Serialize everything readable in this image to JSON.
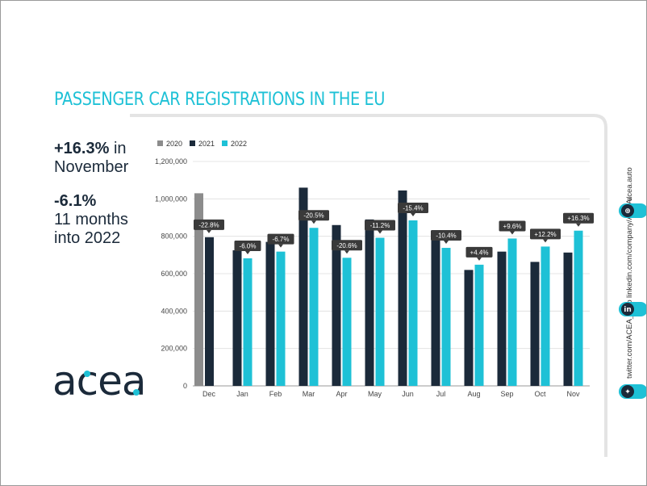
{
  "title": "PASSENGER CAR REGISTRATIONS IN THE EU",
  "stats": {
    "stat1_value": "+16.3%",
    "stat1_line1_rest": " in",
    "stat1_line2": "November",
    "stat2_value": "-6.1%",
    "stat2_line2": "11 months",
    "stat2_line3": "into 2022"
  },
  "logo_text": "acea",
  "social": {
    "handle": "acea.auto",
    "linkedin": "linkedin.com/company/ACEA/",
    "twitter": "twitter.com/ACEA_auto"
  },
  "icons": [
    "globe-icon",
    "linkedin-icon",
    "twitter-icon"
  ],
  "colors": {
    "accent": "#1ec1d6",
    "series_2020": "#8c8c8c",
    "series_2021": "#1b2a3a",
    "series_2022": "#1ec1d6",
    "callout": "#3a3a3a"
  },
  "chart_data": {
    "type": "bar",
    "categories": [
      "Dec",
      "Jan",
      "Feb",
      "Mar",
      "Apr",
      "May",
      "Jun",
      "Jul",
      "Aug",
      "Sep",
      "Oct",
      "Nov"
    ],
    "series": [
      {
        "name": "2020",
        "values": [
          1030000,
          null,
          null,
          null,
          null,
          null,
          null,
          null,
          null,
          null,
          null,
          null
        ]
      },
      {
        "name": "2021",
        "values": [
          795000,
          725000,
          770000,
          1060000,
          860000,
          890000,
          1045000,
          820000,
          620000,
          718000,
          663000,
          713000
        ]
      },
      {
        "name": "2022",
        "values": [
          null,
          682000,
          718000,
          845000,
          685000,
          792000,
          885000,
          738000,
          648000,
          788000,
          745000,
          830000
        ]
      }
    ],
    "annotations": [
      "-22.8%",
      "-6.0%",
      "-6.7%",
      "-20.5%",
      "-20.6%",
      "-11.2%",
      "-15.4%",
      "-10.4%",
      "+4.4%",
      "+9.6%",
      "+12.2%",
      "+16.3%"
    ],
    "ylim": [
      0,
      1200000
    ],
    "yticks": [
      0,
      200000,
      400000,
      600000,
      800000,
      1000000,
      1200000
    ],
    "ytick_labels": [
      "0",
      "200,000",
      "400,000",
      "600,000",
      "800,000",
      "1,000,000",
      "1,200,000"
    ],
    "grid": true,
    "legend": "top-left",
    "title": "",
    "xlabel": "",
    "ylabel": ""
  }
}
